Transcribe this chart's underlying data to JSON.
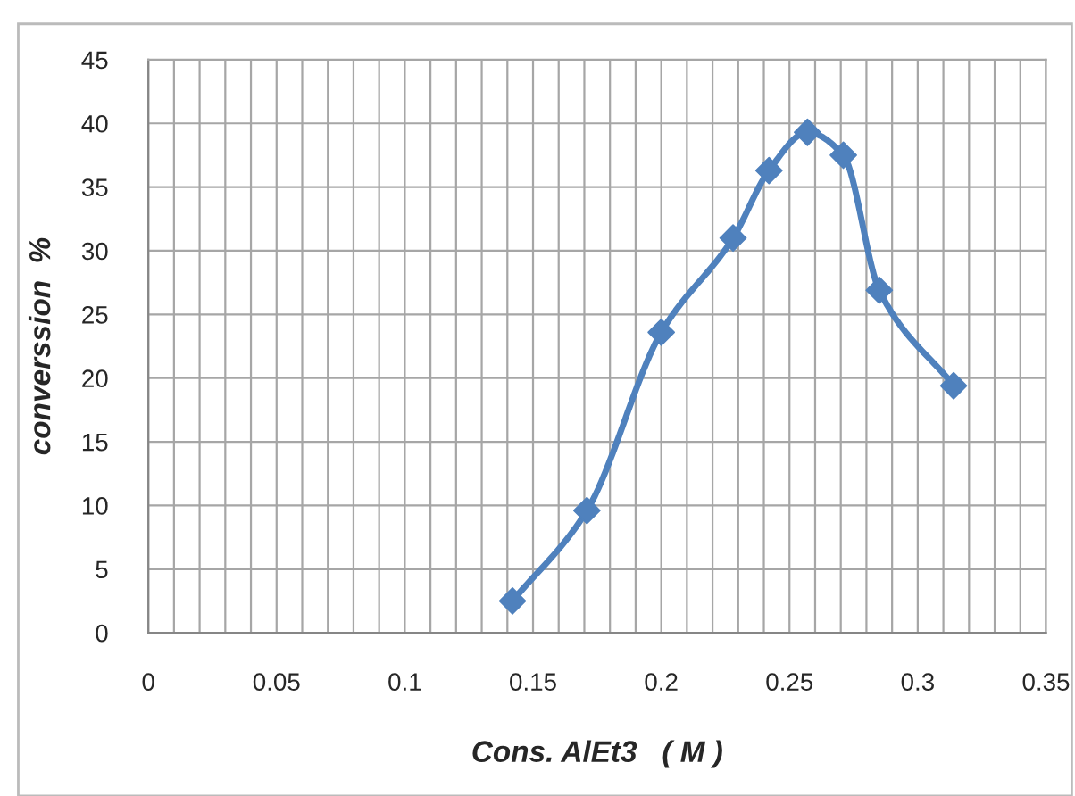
{
  "chart_data": {
    "type": "line",
    "xlabel": "Cons. AlEt3   ( M )",
    "ylabel": "converssion  %",
    "x": [
      0.142,
      0.171,
      0.2,
      0.228,
      0.242,
      0.257,
      0.271,
      0.285,
      0.314
    ],
    "series": [
      {
        "color": "#4f81bd",
        "values": [
          2.5,
          9.6,
          23.6,
          31.0,
          36.3,
          39.3,
          37.5,
          26.9,
          19.4
        ]
      }
    ],
    "xlim": [
      0,
      0.35
    ],
    "xticks": [
      0,
      0.05,
      0.1,
      0.15,
      0.2,
      0.25,
      0.3,
      0.35
    ],
    "ylim": [
      0,
      45
    ],
    "yticks": [
      0,
      5,
      10,
      15,
      20,
      25,
      30,
      35,
      40,
      45
    ],
    "grid": true,
    "marker": "diamond",
    "line_style": "solid"
  }
}
